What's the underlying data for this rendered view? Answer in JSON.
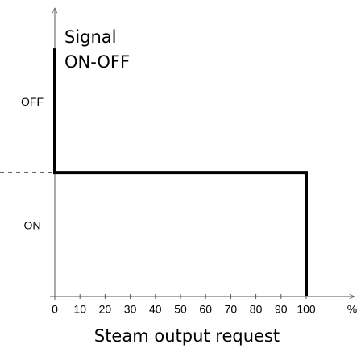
{
  "chart_data": {
    "type": "step",
    "y_label": [
      "Signal",
      "ON-OFF"
    ],
    "x_label": "Steam output request",
    "x_unit": "%",
    "x": [
      0,
      0,
      100,
      100
    ],
    "values": [
      2,
      1,
      1,
      0
    ],
    "color": "#000000",
    "xlim": [
      0,
      100
    ],
    "xticks": [
      0,
      10,
      20,
      30,
      40,
      50,
      60,
      70,
      80,
      90,
      100
    ],
    "ylim": [
      0,
      2.3
    ],
    "yticks": [
      {
        "value": 0.5,
        "label": "ON"
      },
      {
        "value": 1.5,
        "label": "OFF"
      }
    ],
    "reference_line": 1
  }
}
